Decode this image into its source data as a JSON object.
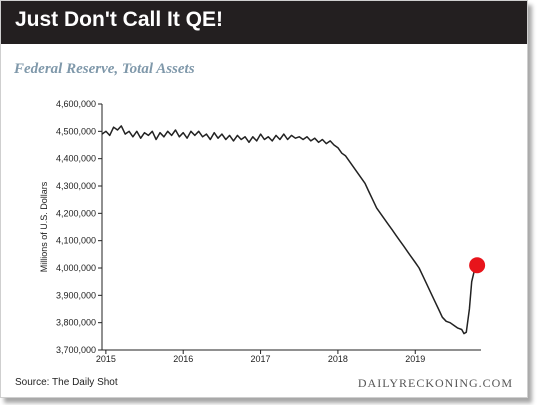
{
  "header": {
    "title": "Just Don't Call It QE!"
  },
  "chart_data": {
    "type": "line",
    "title": "Federal Reserve, Total Assets",
    "xlabel": "",
    "ylabel": "Millions of U.S. Dollars",
    "ylim": [
      3700000,
      4600000
    ],
    "xlim": [
      2014.95,
      2019.85
    ],
    "yticks": [
      3700000,
      3800000,
      3900000,
      4000000,
      4100000,
      4200000,
      4300000,
      4400000,
      4500000,
      4600000
    ],
    "ytick_labels": [
      "3,700,000",
      "3,800,000",
      "3,900,000",
      "4,000,000",
      "4,100,000",
      "4,200,000",
      "4,300,000",
      "4,400,000",
      "4,500,000",
      "4,600,000"
    ],
    "xticks": [
      2015,
      2016,
      2017,
      2018,
      2019
    ],
    "xtick_labels": [
      "2015",
      "2016",
      "2017",
      "2018",
      "2019"
    ],
    "grid": false,
    "line_color": "#222222",
    "highlight_color": "#e8141b",
    "series": [
      {
        "x": [
          2014.95,
          2015.0,
          2015.05,
          2015.1,
          2015.15,
          2015.2,
          2015.25,
          2015.3,
          2015.35,
          2015.4,
          2015.45,
          2015.5,
          2015.55,
          2015.6,
          2015.65,
          2015.7,
          2015.75,
          2015.8,
          2015.85,
          2015.9,
          2015.95,
          2016.0,
          2016.05,
          2016.1,
          2016.15,
          2016.2,
          2016.25,
          2016.3,
          2016.35,
          2016.4,
          2016.45,
          2016.5,
          2016.55,
          2016.6,
          2016.65,
          2016.7,
          2016.75,
          2016.8,
          2016.85,
          2016.9,
          2016.95,
          2017.0,
          2017.05,
          2017.1,
          2017.15,
          2017.2,
          2017.25,
          2017.3,
          2017.35,
          2017.4,
          2017.45,
          2017.5,
          2017.55,
          2017.6,
          2017.65,
          2017.7,
          2017.75,
          2017.8,
          2017.85,
          2017.9,
          2017.95,
          2018.0,
          2018.05,
          2018.1,
          2018.15,
          2018.2,
          2018.25,
          2018.3,
          2018.35,
          2018.4,
          2018.45,
          2018.5,
          2018.55,
          2018.6,
          2018.65,
          2018.7,
          2018.75,
          2018.8,
          2018.85,
          2018.9,
          2018.95,
          2019.0,
          2019.05,
          2019.1,
          2019.15,
          2019.2,
          2019.25,
          2019.3,
          2019.35,
          2019.4,
          2019.45,
          2019.5,
          2019.55,
          2019.6,
          2019.63,
          2019.66,
          2019.7,
          2019.73,
          2019.76,
          2019.8
        ],
        "y": [
          4490000,
          4500000,
          4485000,
          4515000,
          4505000,
          4520000,
          4490000,
          4500000,
          4480000,
          4500000,
          4475000,
          4495000,
          4485000,
          4500000,
          4470000,
          4495000,
          4480000,
          4500000,
          4485000,
          4505000,
          4480000,
          4495000,
          4475000,
          4500000,
          4485000,
          4500000,
          4480000,
          4490000,
          4470000,
          4495000,
          4475000,
          4490000,
          4470000,
          4485000,
          4465000,
          4485000,
          4470000,
          4480000,
          4460000,
          4480000,
          4465000,
          4490000,
          4470000,
          4480000,
          4465000,
          4485000,
          4470000,
          4490000,
          4470000,
          4485000,
          4475000,
          4480000,
          4470000,
          4480000,
          4465000,
          4475000,
          4460000,
          4470000,
          4455000,
          4465000,
          4450000,
          4440000,
          4420000,
          4410000,
          4390000,
          4370000,
          4350000,
          4330000,
          4310000,
          4280000,
          4250000,
          4220000,
          4200000,
          4180000,
          4160000,
          4140000,
          4120000,
          4100000,
          4080000,
          4060000,
          4040000,
          4020000,
          4000000,
          3970000,
          3940000,
          3910000,
          3880000,
          3850000,
          3820000,
          3805000,
          3800000,
          3790000,
          3780000,
          3775000,
          3760000,
          3765000,
          3850000,
          3950000,
          3985000,
          4010000
        ]
      }
    ],
    "highlight_point": {
      "x": 2019.8,
      "y": 4010000
    }
  },
  "footer": {
    "source": "Source: The Daily Shot",
    "brand": "DAILYRECKONING.COM"
  }
}
